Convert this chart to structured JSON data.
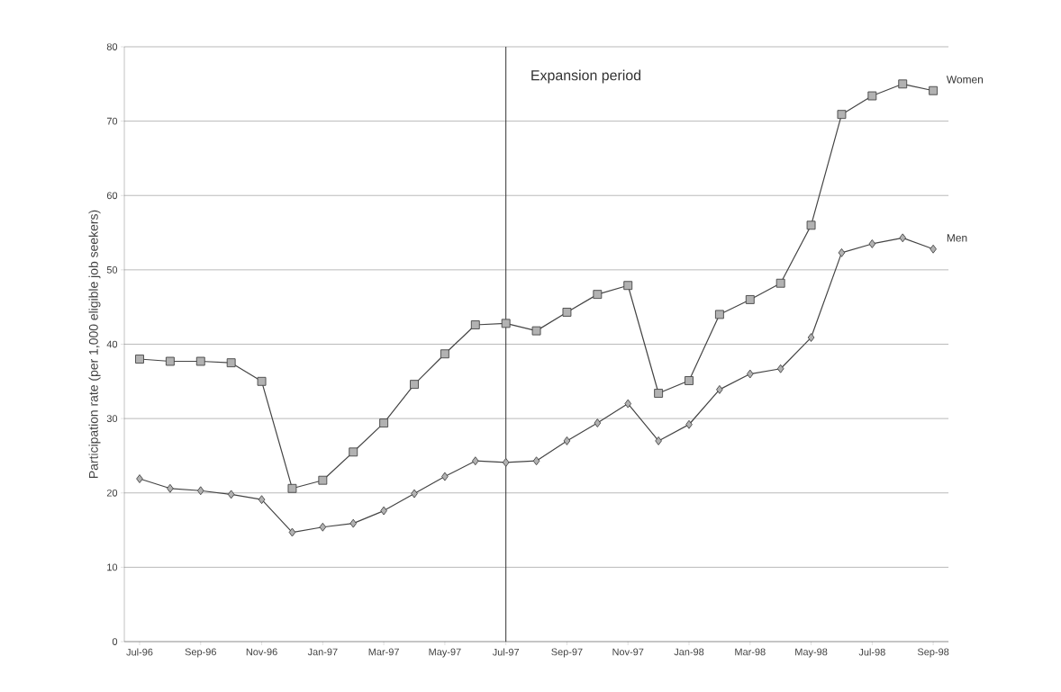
{
  "chart_data": {
    "type": "line",
    "ylabel": "Participation rate (per 1,000 eligible job seekers)",
    "categories": [
      "Jul-96",
      null,
      "Sep-96",
      null,
      "Nov-96",
      null,
      "Jan-97",
      null,
      "Mar-97",
      null,
      "May-97",
      null,
      "Jul-97",
      null,
      "Sep-97",
      null,
      "Nov-97",
      null,
      "Jan-98",
      null,
      "Mar-98",
      null,
      "May-98",
      null,
      "Jul-98",
      null,
      "Sep-98"
    ],
    "series": [
      {
        "name": "Women",
        "color": "#444444",
        "marker": "square",
        "values": [
          38,
          37.7,
          37.7,
          37.5,
          35,
          20.6,
          21.7,
          25.5,
          29.4,
          34.6,
          38.7,
          42.6,
          42.8,
          41.8,
          44.3,
          46.7,
          47.9,
          33.4,
          35.1,
          44,
          46,
          48.2,
          56,
          70.9,
          73.4,
          75,
          74.1
        ]
      },
      {
        "name": "Men",
        "color": "#444444",
        "marker": "diamond",
        "values": [
          21.9,
          20.6,
          20.3,
          19.8,
          19.1,
          14.7,
          15.4,
          15.9,
          17.6,
          19.9,
          22.2,
          24.3,
          24.1,
          24.3,
          27,
          29.4,
          32,
          27,
          29.2,
          33.9,
          36,
          36.7,
          40.9,
          52.3,
          53.5,
          54.3,
          52.8
        ]
      }
    ],
    "ylim": [
      0,
      80
    ],
    "yticks": [
      0,
      10,
      20,
      30,
      40,
      50,
      60,
      70,
      80
    ],
    "grid": "y",
    "ref_lines": [
      {
        "axis": "x",
        "value": "Jul-97",
        "color": "#333333"
      }
    ],
    "annotations": [
      "Expansion period"
    ]
  }
}
